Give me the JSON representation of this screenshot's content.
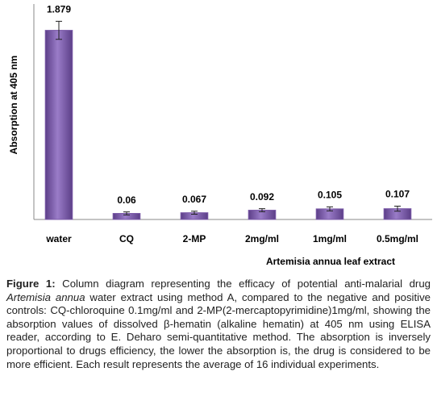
{
  "chart_data": {
    "type": "bar",
    "y_label": "Absorption at 405 nm",
    "x_label": "Artemisia annua leaf extract",
    "categories": [
      "water",
      "CQ",
      "2-MP",
      "2mg/ml",
      "1mg/ml",
      "0.5mg/ml"
    ],
    "values": [
      1.879,
      0.06,
      0.067,
      0.092,
      0.105,
      0.107
    ],
    "errors": [
      0.09,
      0.015,
      0.015,
      0.015,
      0.02,
      0.025
    ],
    "color": "#7b5aa8",
    "ylim": [
      0,
      2.1
    ]
  },
  "caption": {
    "label": "Figure 1:",
    "text1": " Column diagram representing the efficacy of potential anti-malarial drug ",
    "italic": "Artemisia annua",
    "text2": " water extract using method A, compared to the negative and positive controls: CQ-chloroquine 0.1mg/ml and 2-MP(2-mercaptopyrimidine)1mg/ml, showing the absorption values of dissolved β-hematin (alkaline hematin) at 405 nm using ELISA reader, according to E. Deharo semi-quantitative method. The absorption is inversely proportional to drugs efficiency, the lower the absorption is, the drug is considered to be more efficient. Each result represents the average of 16 individual experiments."
  }
}
